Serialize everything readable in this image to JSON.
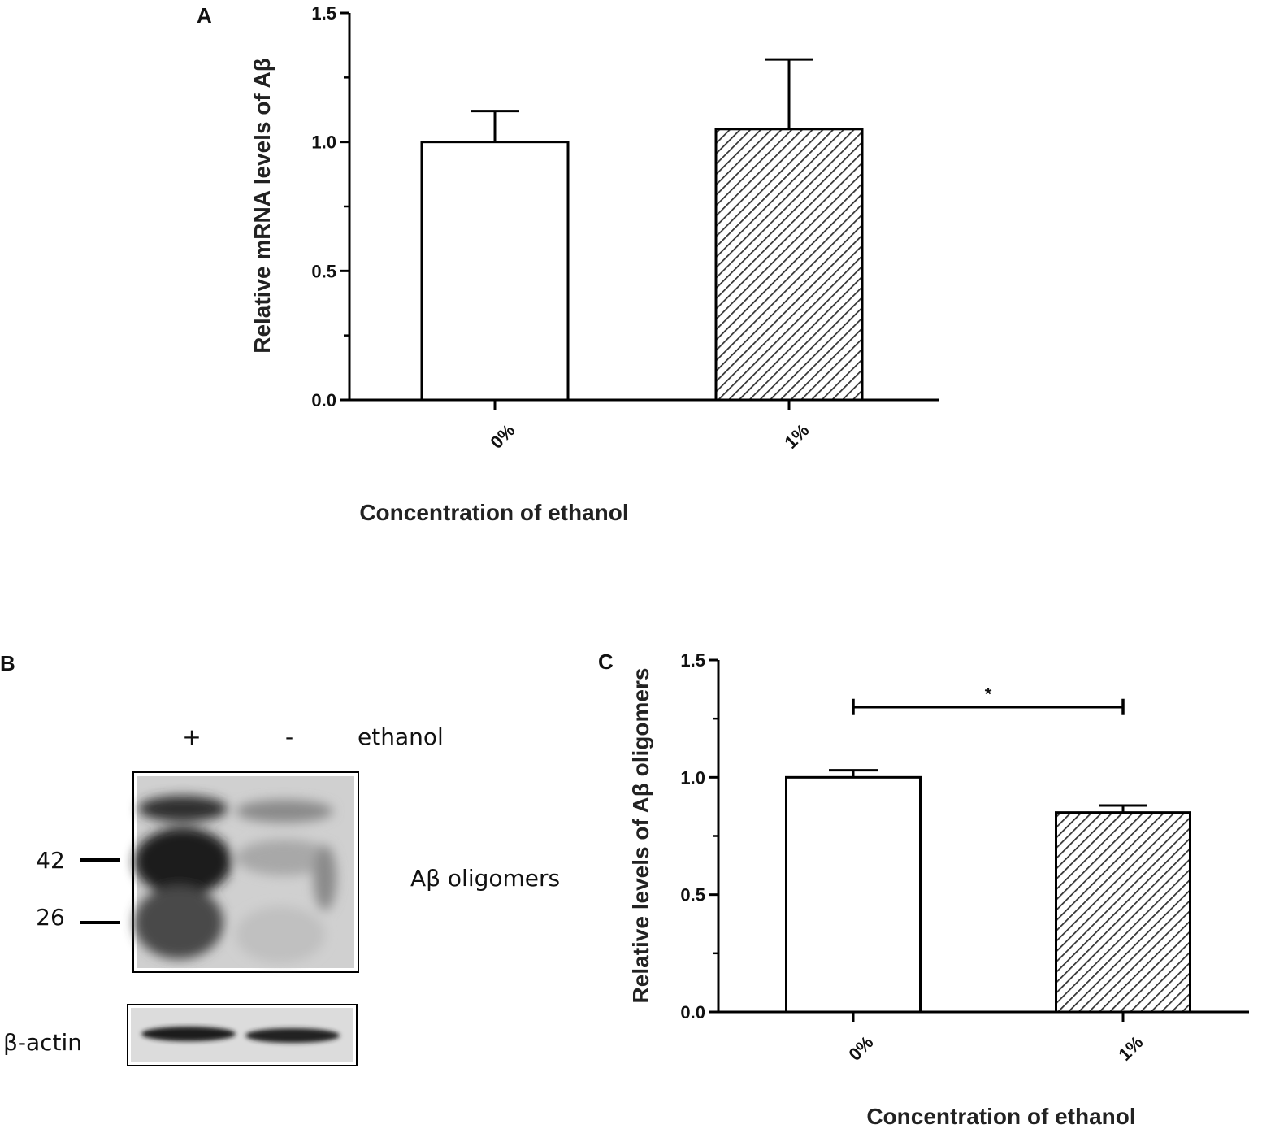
{
  "chart_data": [
    {
      "panel": "A",
      "type": "bar",
      "categories": [
        "0%",
        "1%"
      ],
      "values": [
        1.0,
        1.05
      ],
      "error": [
        0.12,
        0.27
      ],
      "fill": [
        "white",
        "hatched"
      ],
      "xlabel": "Concentration of ethanol",
      "ylabel": "Relative mRNA levels of Aβ",
      "ylim": [
        0,
        1.5
      ],
      "yticks": [
        "0.0",
        "0.5",
        "1.0",
        "1.5"
      ]
    },
    {
      "panel": "C",
      "type": "bar",
      "categories": [
        "0%",
        "1%"
      ],
      "values": [
        1.0,
        0.85
      ],
      "error": [
        0.03,
        0.03
      ],
      "fill": [
        "white",
        "hatched"
      ],
      "xlabel": "Concentration of ethanol",
      "ylabel": "Relative levels of Aβ  oligomers",
      "ylim": [
        0,
        1.5
      ],
      "yticks": [
        "0.0",
        "0.5",
        "1.0",
        "1.5"
      ],
      "significance": {
        "pair": [
          "0%",
          "1%"
        ],
        "label": "*"
      }
    }
  ],
  "blot": {
    "panel": "B",
    "lanes": [
      "+",
      "-"
    ],
    "lane_title": "ethanol",
    "markers": [
      "42",
      "26"
    ],
    "band_label": "Aβ oligomers",
    "loading_control": "β-actin"
  },
  "colors": {
    "axis": "#000000",
    "bar_fill": "#ffffff",
    "hatch": "#333333"
  }
}
